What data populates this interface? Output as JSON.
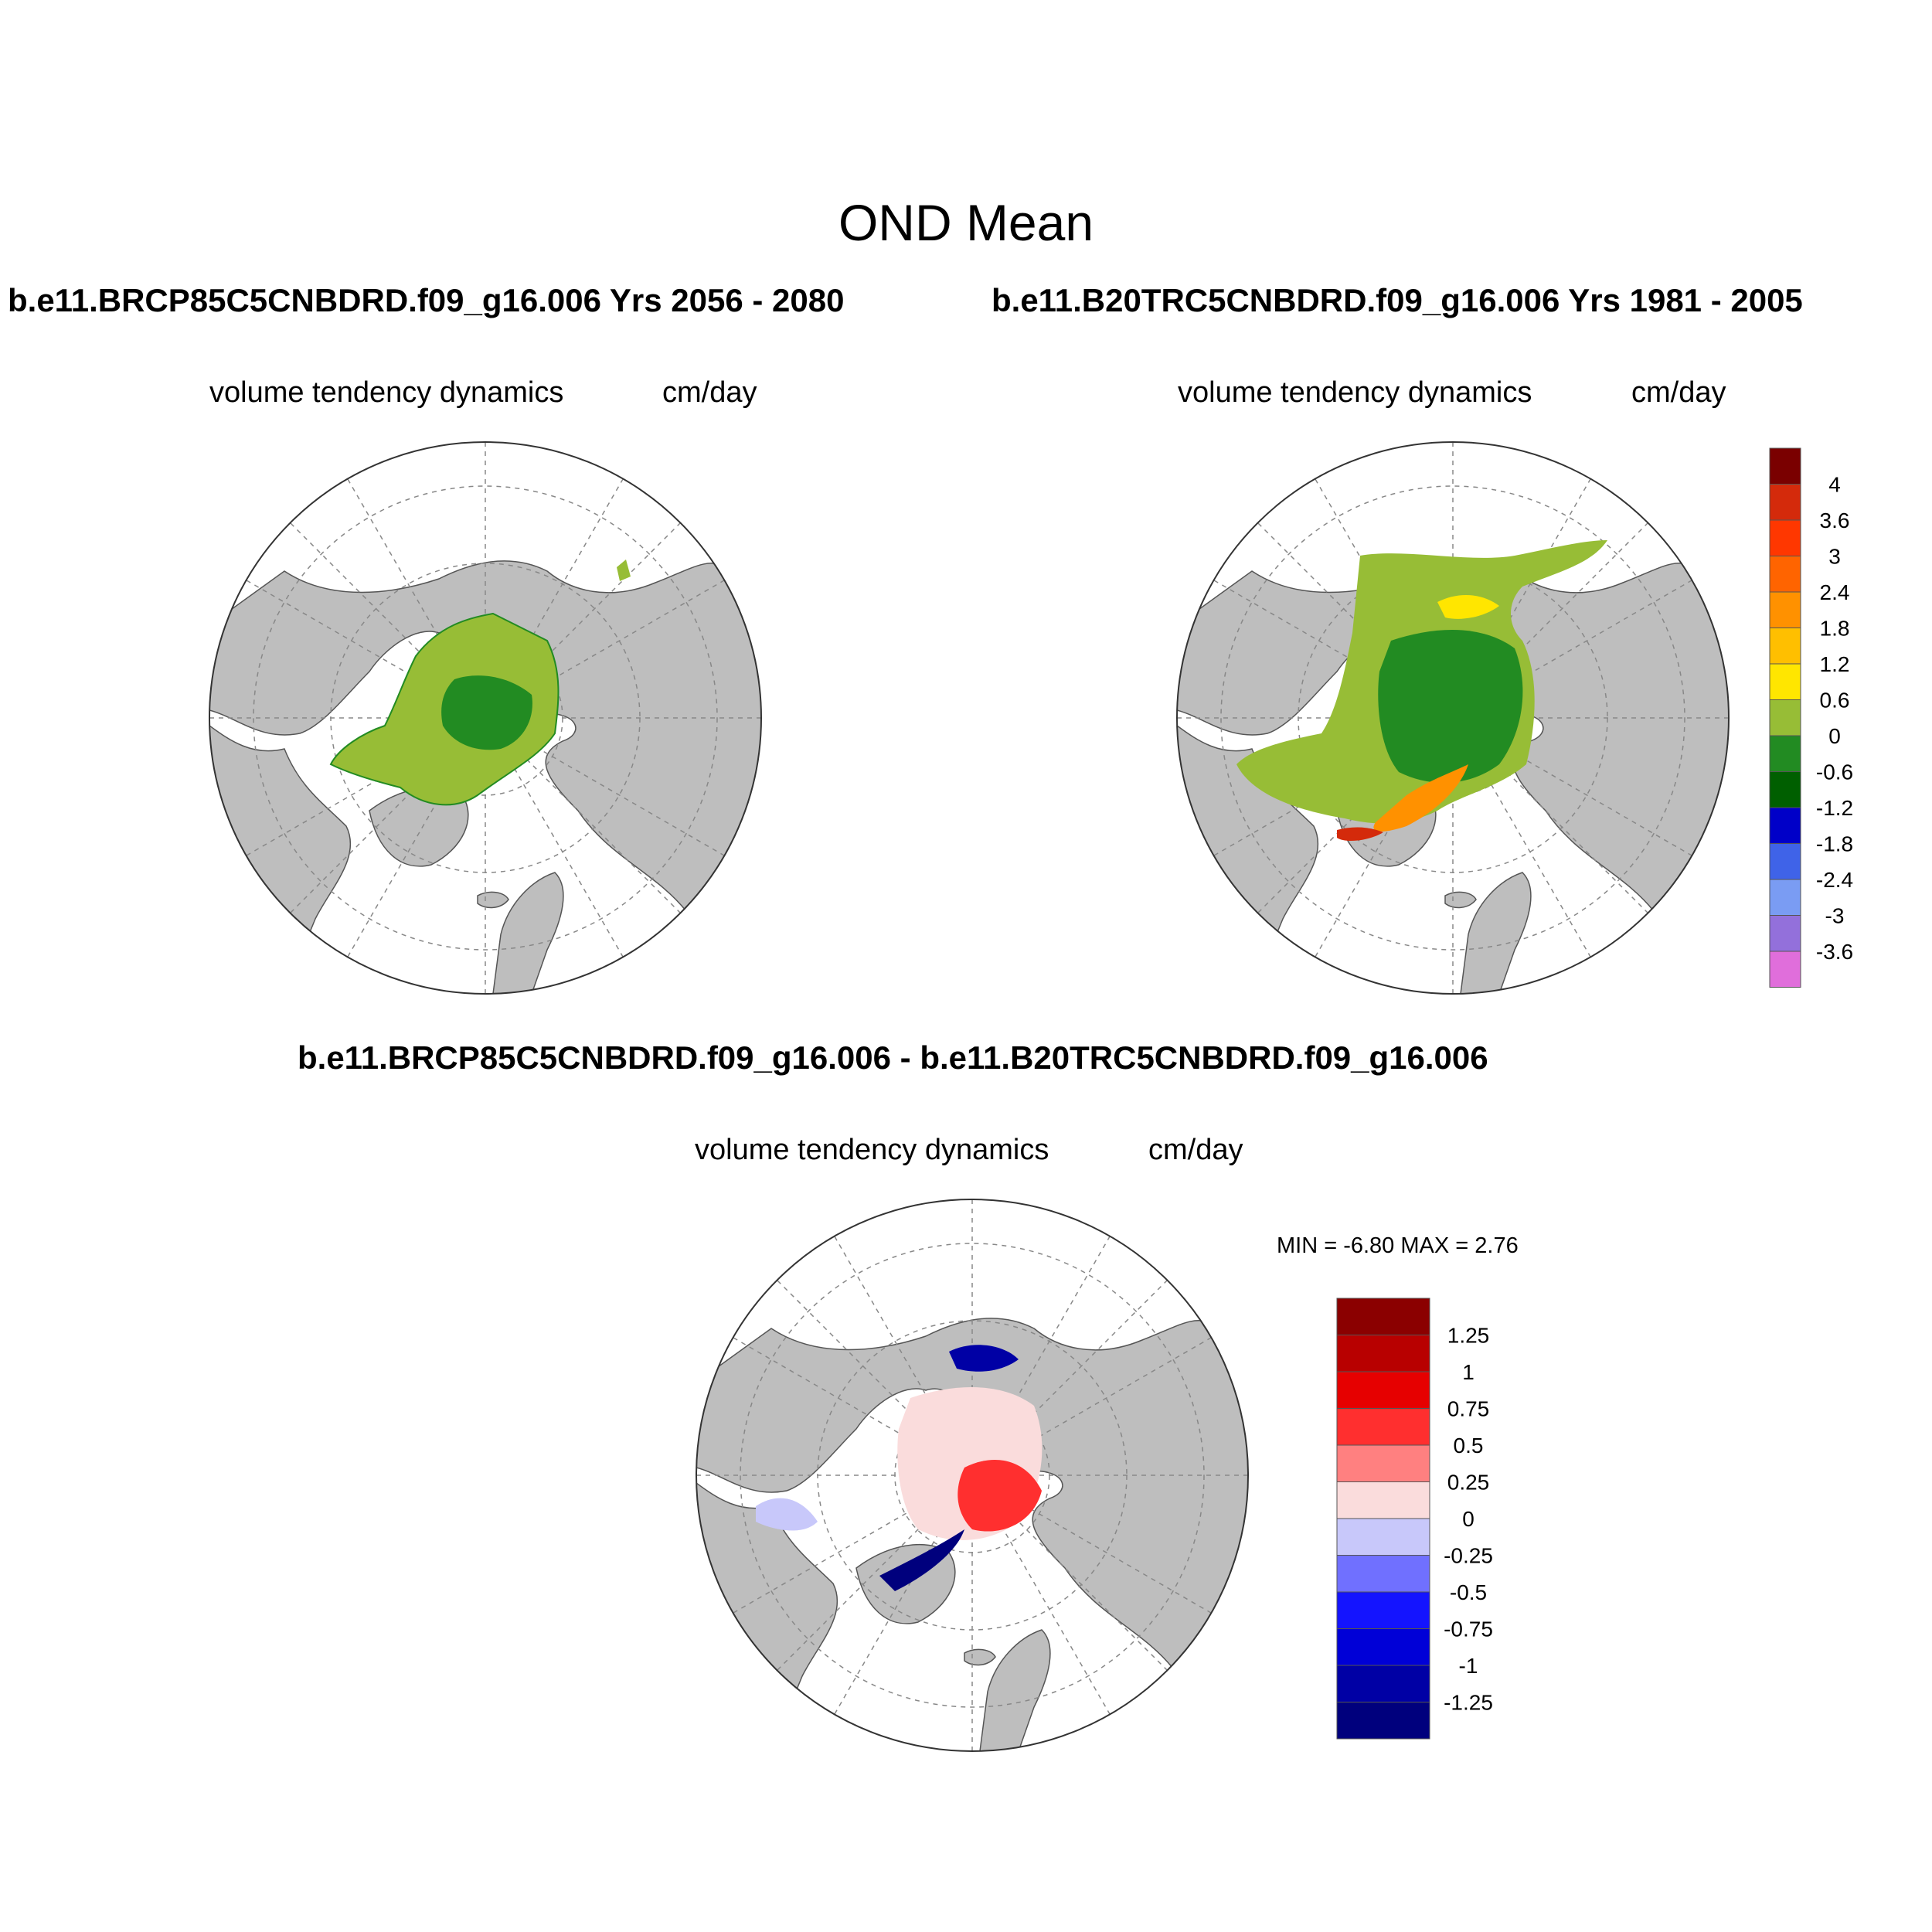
{
  "main_title": "OND Mean",
  "panels": [
    {
      "case_title": "b.e11.BRCP85C5CNBDRD.f09_g16.006  Yrs 2056 - 2080",
      "left_label": "volume tendency dynamics",
      "right_label": "cm/day"
    },
    {
      "case_title": "b.e11.B20TRC5CNBDRD.f09_g16.006  Yrs 1981 - 2005",
      "left_label": "volume tendency dynamics",
      "right_label": "cm/day"
    },
    {
      "case_title": "b.e11.BRCP85C5CNBDRD.f09_g16.006 - b.e11.B20TRC5CNBDRD.f09_g16.006",
      "left_label": "volume tendency dynamics",
      "right_label": "cm/day",
      "min_max": "MIN =  -6.80 MAX =   2.76"
    }
  ],
  "legend_top": {
    "labels": [
      "4",
      "3.6",
      "3",
      "2.4",
      "1.8",
      "1.2",
      "0.6",
      "0",
      "-0.6",
      "-1.2",
      "-1.8",
      "-2.4",
      "-3",
      "-3.6"
    ],
    "colors": [
      "#7a0000",
      "#d42a0b",
      "#ff3700",
      "#ff6400",
      "#ff9100",
      "#ffbf00",
      "#ffe600",
      "#97bd36",
      "#228b22",
      "#005f00",
      "#0000c8",
      "#3f63e8",
      "#7a9cf3",
      "#9370db",
      "#e06edb"
    ]
  },
  "legend_diff": {
    "labels": [
      "1.25",
      "1",
      "0.75",
      "0.5",
      "0.25",
      "0",
      "-0.25",
      "-0.5",
      "-0.75",
      "-1",
      "-1.25"
    ],
    "colors": [
      "#8b0000",
      "#b80000",
      "#e60000",
      "#ff2f2f",
      "#ff8080",
      "#fadcdc",
      "#c8c8fa",
      "#7070ff",
      "#1414ff",
      "#0000d7",
      "#0000a5",
      "#00007d"
    ]
  },
  "map_colors": {
    "land": "#bebebe",
    "ocean": "#ffffff"
  }
}
